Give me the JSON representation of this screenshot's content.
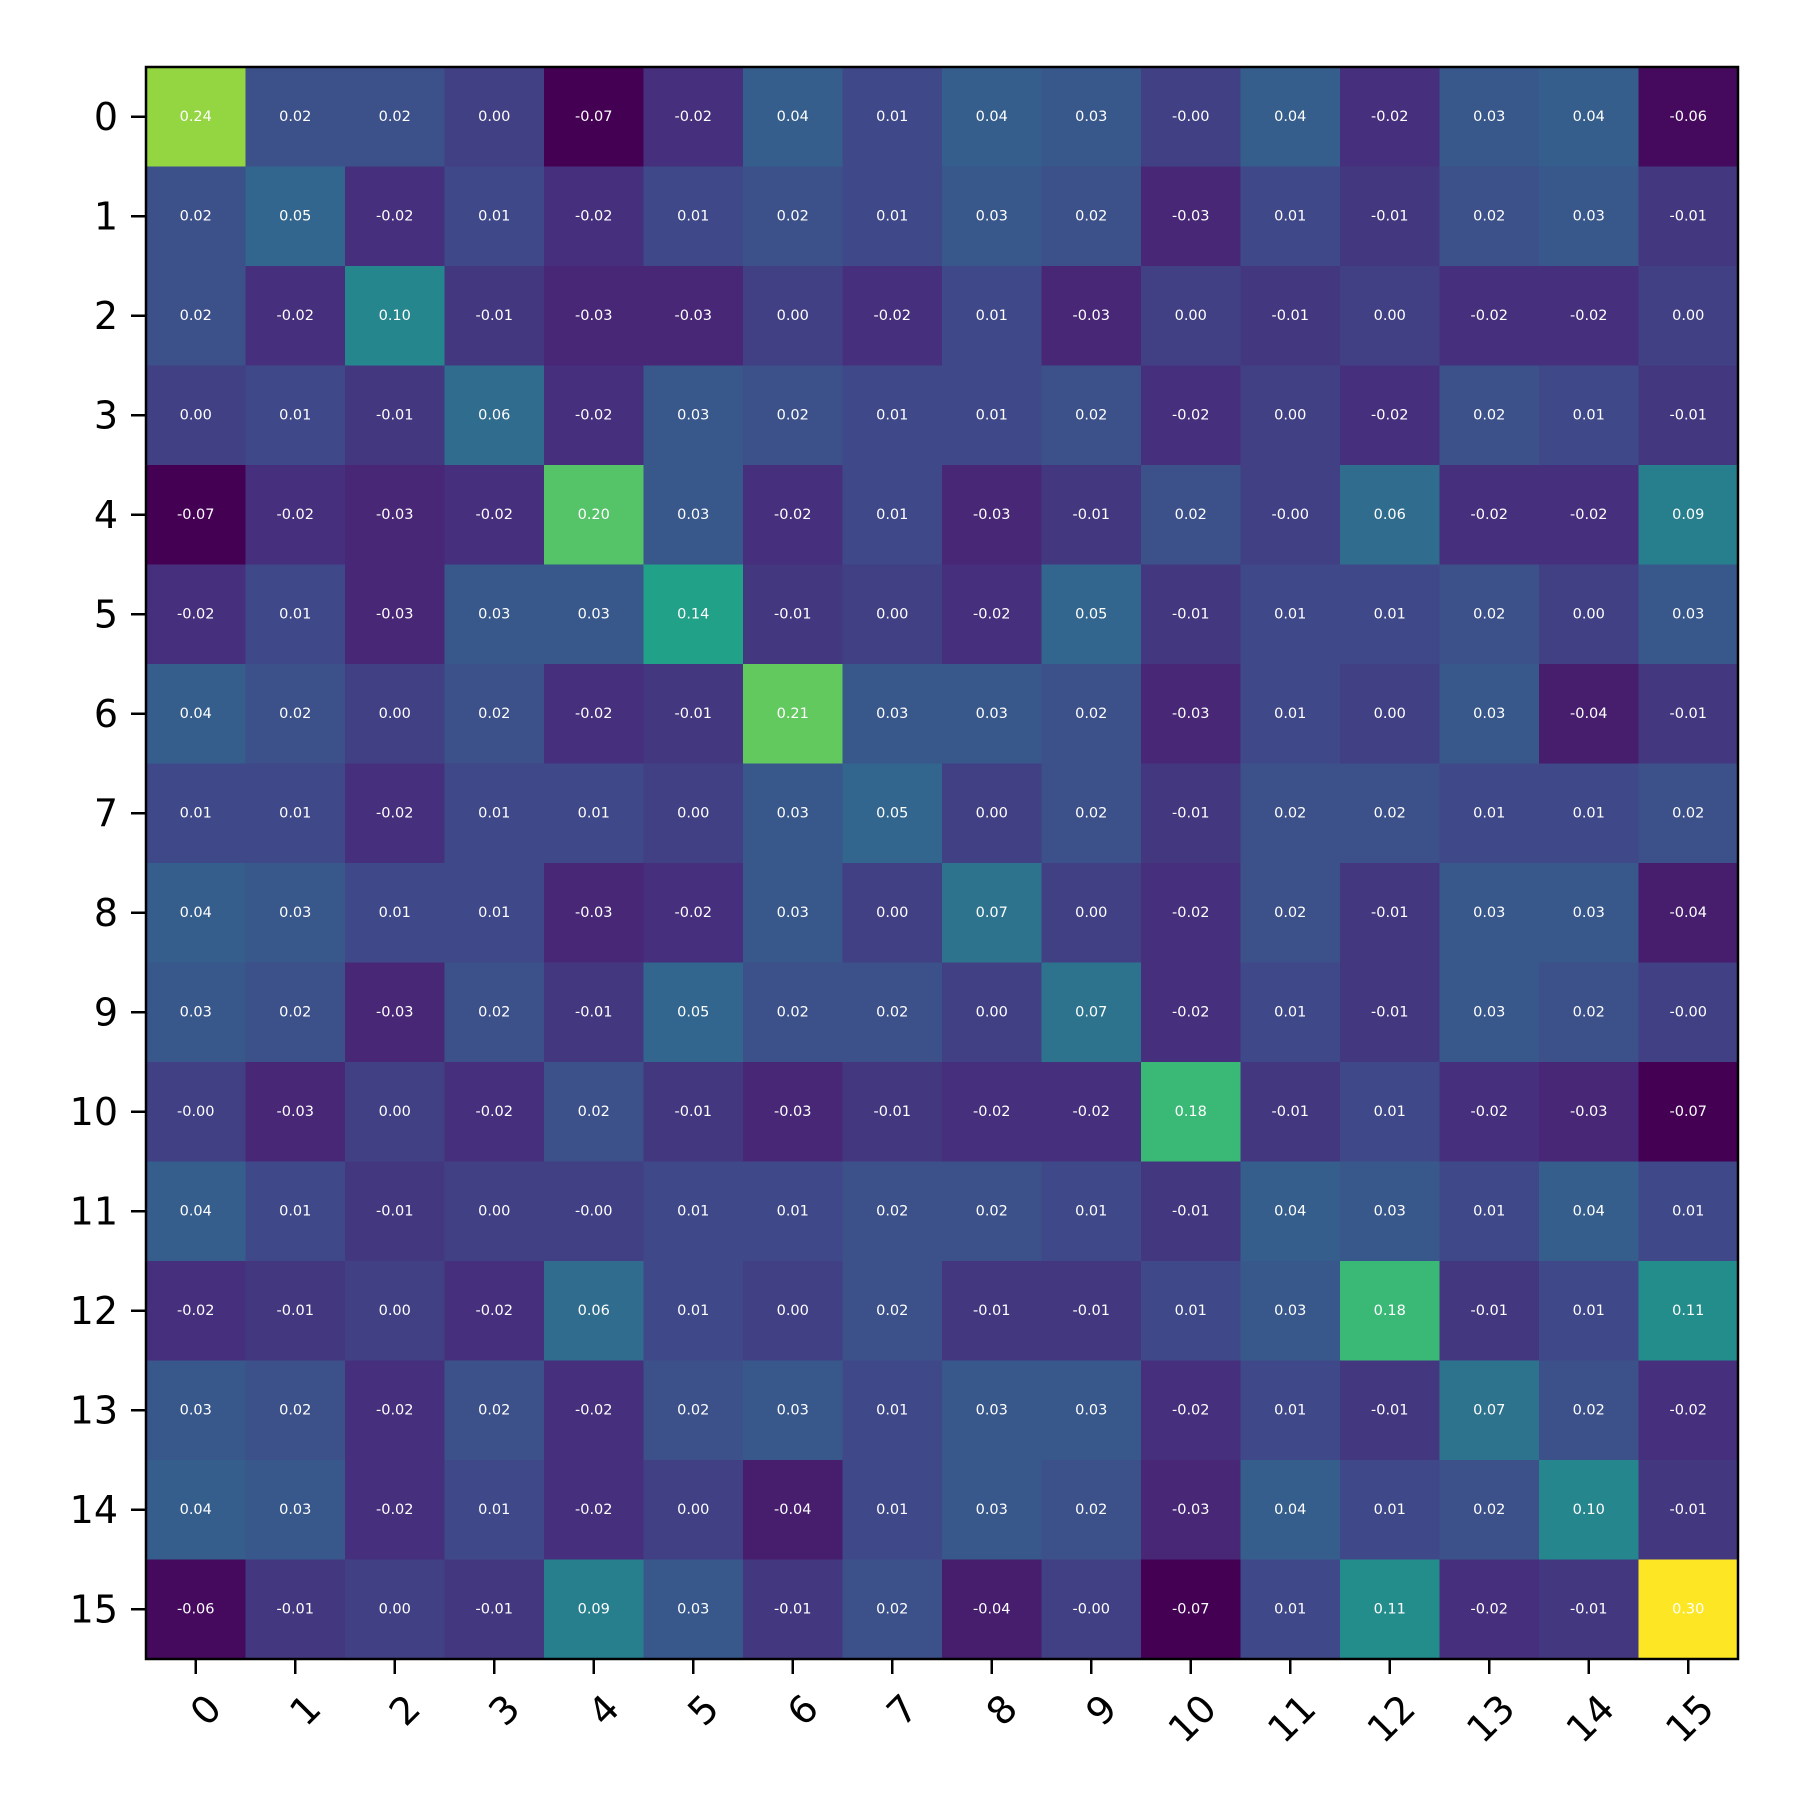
{
  "chart_data": {
    "type": "heatmap",
    "colormap": "viridis",
    "value_range": [
      -0.07,
      0.3
    ],
    "x_tick_labels": [
      "0",
      "1",
      "2",
      "3",
      "4",
      "5",
      "6",
      "7",
      "8",
      "9",
      "10",
      "11",
      "12",
      "13",
      "14",
      "15"
    ],
    "y_tick_labels": [
      "0",
      "1",
      "2",
      "3",
      "4",
      "5",
      "6",
      "7",
      "8",
      "9",
      "10",
      "11",
      "12",
      "13",
      "14",
      "15"
    ],
    "x_tick_rotation_deg": 45,
    "grid": false,
    "colorbar": false,
    "values": [
      [
        0.24,
        0.02,
        0.02,
        0.0,
        -0.07,
        -0.02,
        0.04,
        0.01,
        0.04,
        0.03,
        -0.0,
        0.04,
        -0.02,
        0.03,
        0.04,
        -0.06
      ],
      [
        0.02,
        0.05,
        -0.02,
        0.01,
        -0.02,
        0.01,
        0.02,
        0.01,
        0.03,
        0.02,
        -0.03,
        0.01,
        -0.01,
        0.02,
        0.03,
        -0.01
      ],
      [
        0.02,
        -0.02,
        0.1,
        -0.01,
        -0.03,
        -0.03,
        0.0,
        -0.02,
        0.01,
        -0.03,
        0.0,
        -0.01,
        0.0,
        -0.02,
        -0.02,
        0.0
      ],
      [
        0.0,
        0.01,
        -0.01,
        0.06,
        -0.02,
        0.03,
        0.02,
        0.01,
        0.01,
        0.02,
        -0.02,
        0.0,
        -0.02,
        0.02,
        0.01,
        -0.01
      ],
      [
        -0.07,
        -0.02,
        -0.03,
        -0.02,
        0.2,
        0.03,
        -0.02,
        0.01,
        -0.03,
        -0.01,
        0.02,
        -0.0,
        0.06,
        -0.02,
        -0.02,
        0.09
      ],
      [
        -0.02,
        0.01,
        -0.03,
        0.03,
        0.03,
        0.14,
        -0.01,
        0.0,
        -0.02,
        0.05,
        -0.01,
        0.01,
        0.01,
        0.02,
        0.0,
        0.03
      ],
      [
        0.04,
        0.02,
        0.0,
        0.02,
        -0.02,
        -0.01,
        0.21,
        0.03,
        0.03,
        0.02,
        -0.03,
        0.01,
        0.0,
        0.03,
        -0.04,
        -0.01
      ],
      [
        0.01,
        0.01,
        -0.02,
        0.01,
        0.01,
        0.0,
        0.03,
        0.05,
        0.0,
        0.02,
        -0.01,
        0.02,
        0.02,
        0.01,
        0.01,
        0.02
      ],
      [
        0.04,
        0.03,
        0.01,
        0.01,
        -0.03,
        -0.02,
        0.03,
        0.0,
        0.07,
        0.0,
        -0.02,
        0.02,
        -0.01,
        0.03,
        0.03,
        -0.04
      ],
      [
        0.03,
        0.02,
        -0.03,
        0.02,
        -0.01,
        0.05,
        0.02,
        0.02,
        0.0,
        0.07,
        -0.02,
        0.01,
        -0.01,
        0.03,
        0.02,
        -0.0
      ],
      [
        -0.0,
        -0.03,
        0.0,
        -0.02,
        0.02,
        -0.01,
        -0.03,
        -0.01,
        -0.02,
        -0.02,
        0.18,
        -0.01,
        0.01,
        -0.02,
        -0.03,
        -0.07
      ],
      [
        0.04,
        0.01,
        -0.01,
        0.0,
        -0.0,
        0.01,
        0.01,
        0.02,
        0.02,
        0.01,
        -0.01,
        0.04,
        0.03,
        0.01,
        0.04,
        0.01
      ],
      [
        -0.02,
        -0.01,
        0.0,
        -0.02,
        0.06,
        0.01,
        0.0,
        0.02,
        -0.01,
        -0.01,
        0.01,
        0.03,
        0.18,
        -0.01,
        0.01,
        0.11
      ],
      [
        0.03,
        0.02,
        -0.02,
        0.02,
        -0.02,
        0.02,
        0.03,
        0.01,
        0.03,
        0.03,
        -0.02,
        0.01,
        -0.01,
        0.07,
        0.02,
        -0.02
      ],
      [
        0.04,
        0.03,
        -0.02,
        0.01,
        -0.02,
        0.0,
        -0.04,
        0.01,
        0.03,
        0.02,
        -0.03,
        0.04,
        0.01,
        0.02,
        0.1,
        -0.01
      ],
      [
        -0.06,
        -0.01,
        0.0,
        -0.01,
        0.09,
        0.03,
        -0.01,
        0.02,
        -0.04,
        -0.0,
        -0.07,
        0.01,
        0.11,
        -0.02,
        -0.01,
        0.3
      ]
    ]
  }
}
